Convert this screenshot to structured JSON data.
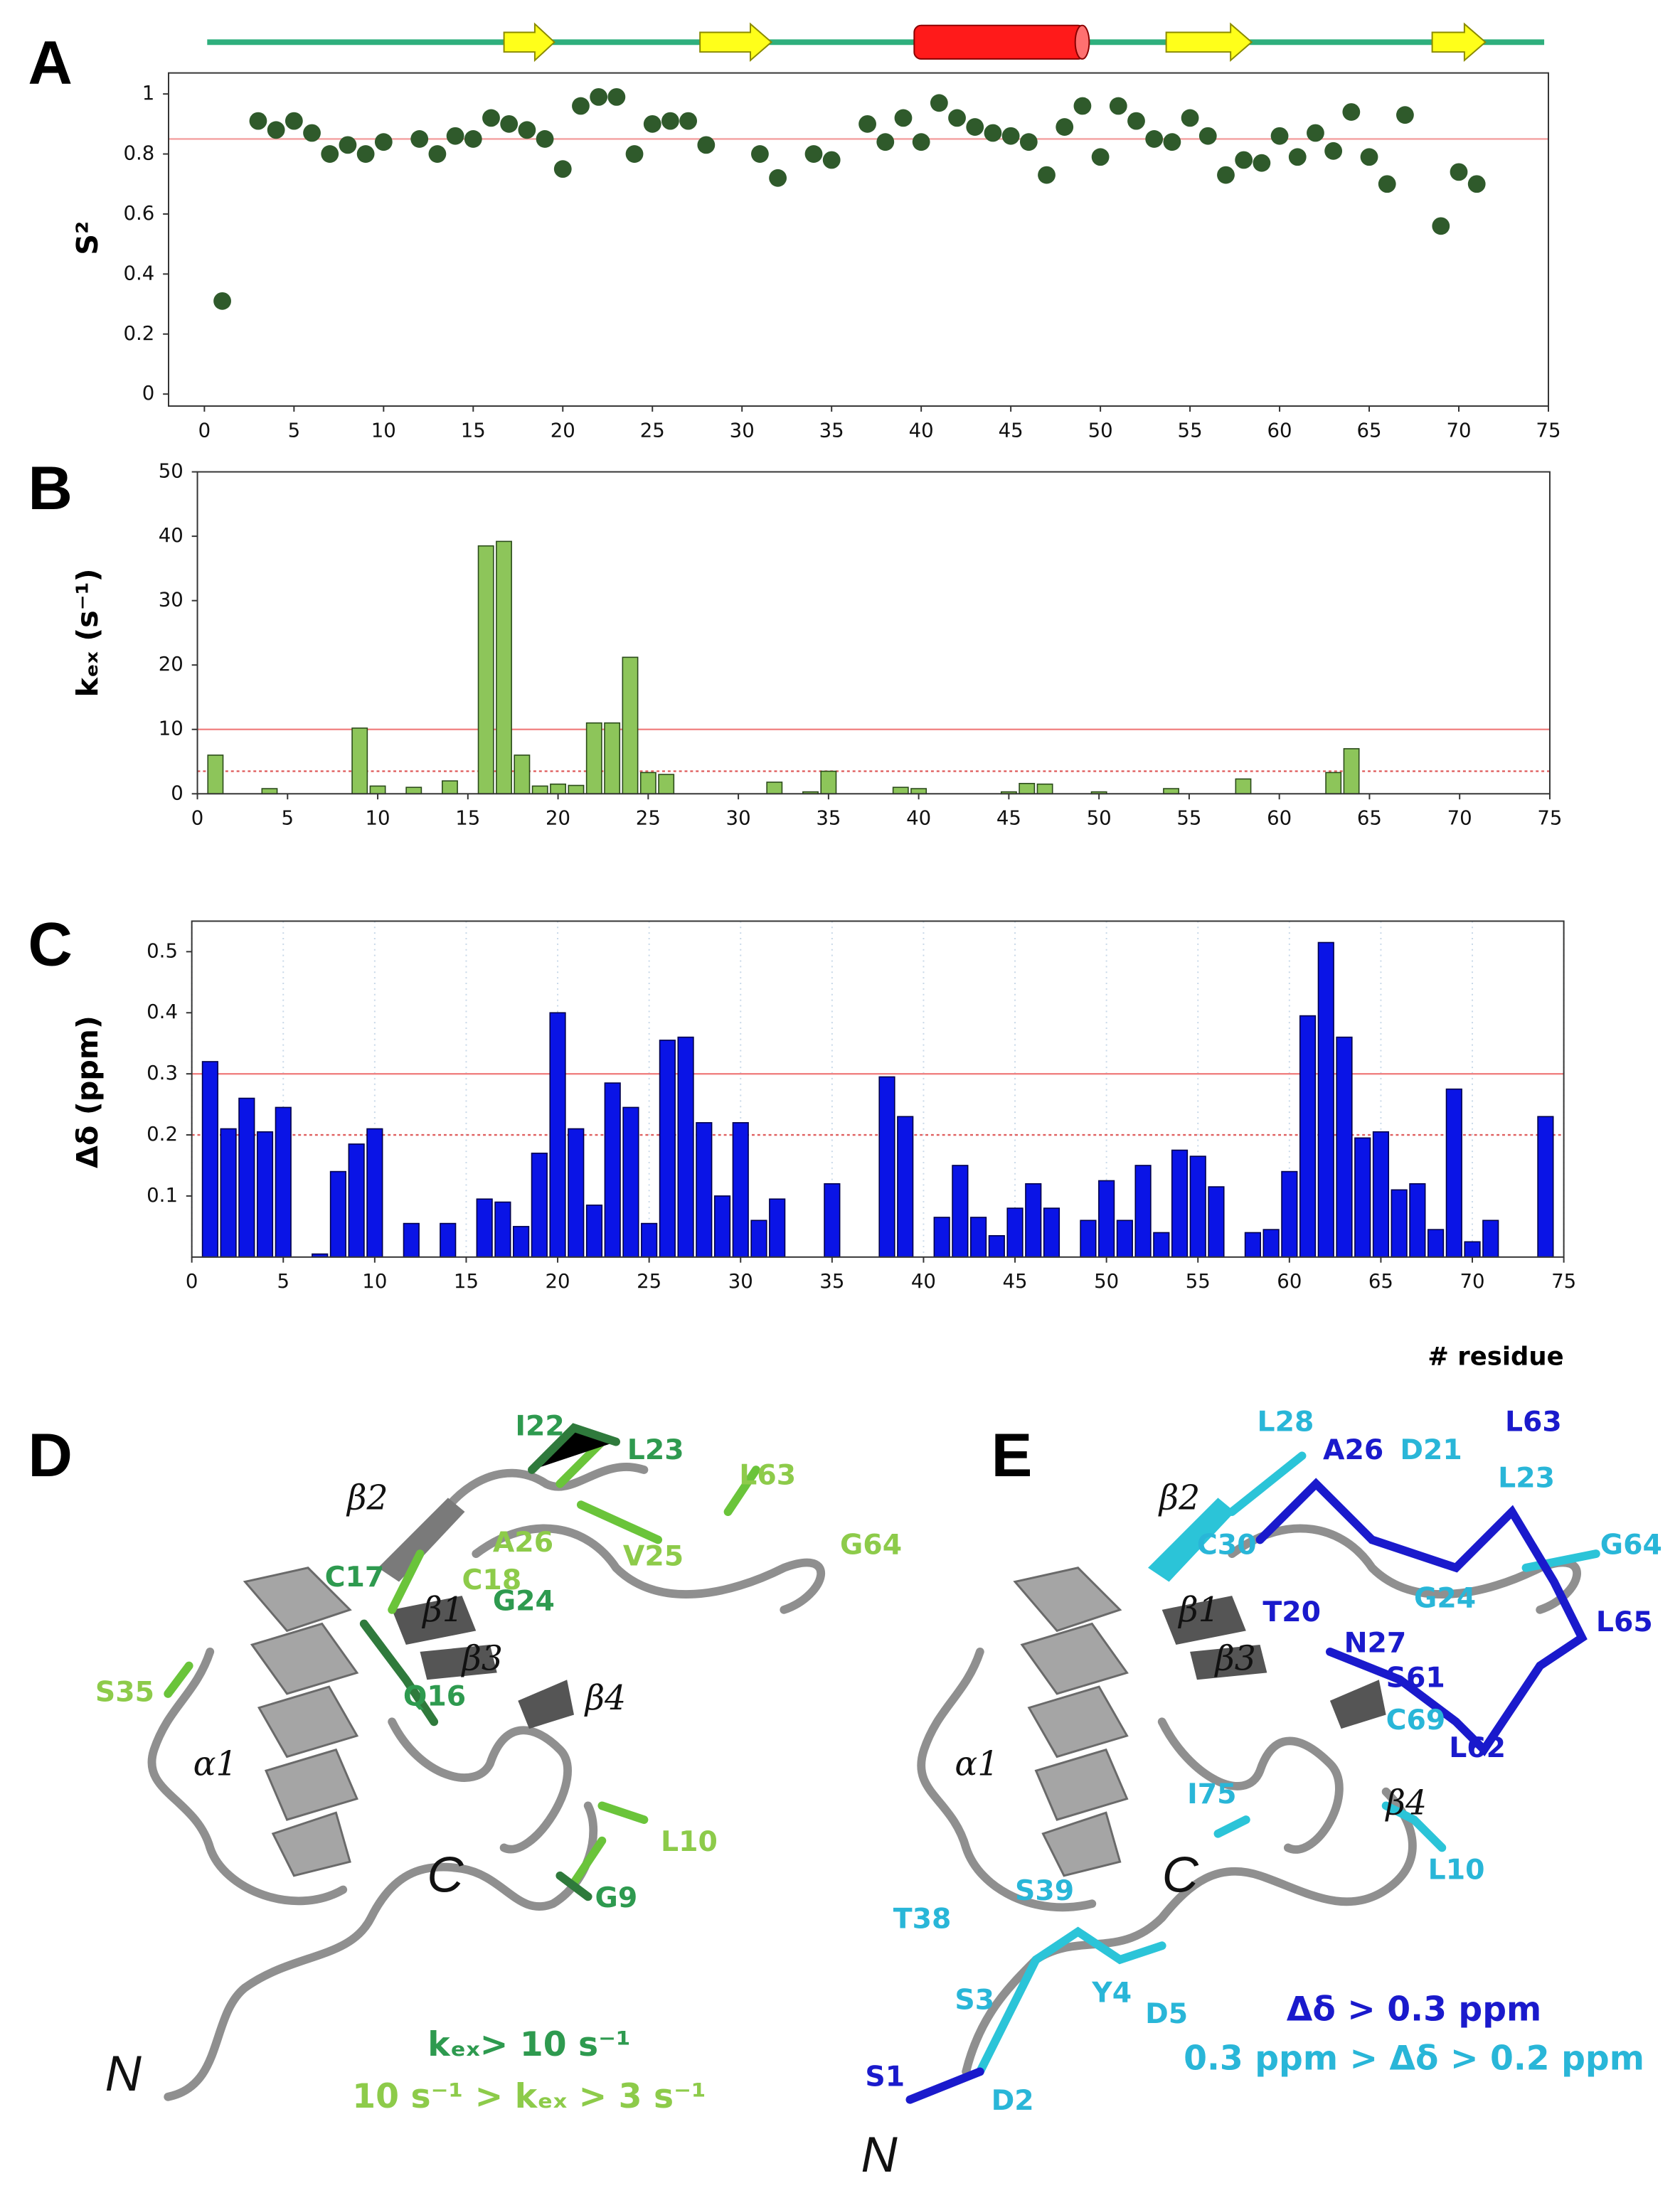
{
  "chart_data": [
    {
      "type": "scatter",
      "panel": "A",
      "y_label": "S²",
      "color": "#2f5a2b",
      "x": [
        1,
        3,
        4,
        5,
        6,
        7,
        8,
        9,
        10,
        12,
        13,
        14,
        15,
        16,
        17,
        18,
        19,
        20,
        21,
        22,
        23,
        24,
        25,
        26,
        27,
        28,
        31,
        32,
        34,
        35,
        37,
        38,
        39,
        40,
        41,
        42,
        43,
        44,
        45,
        46,
        47,
        48,
        49,
        50,
        51,
        52,
        53,
        54,
        55,
        56,
        57,
        58,
        59,
        60,
        61,
        62,
        63,
        64,
        65,
        66,
        67,
        69,
        70,
        71
      ],
      "values": [
        0.31,
        0.91,
        0.88,
        0.91,
        0.87,
        0.8,
        0.83,
        0.8,
        0.84,
        0.85,
        0.8,
        0.86,
        0.85,
        0.92,
        0.9,
        0.88,
        0.85,
        0.75,
        0.96,
        0.99,
        0.99,
        0.8,
        0.9,
        0.91,
        0.91,
        0.83,
        0.8,
        0.72,
        0.8,
        0.78,
        0.9,
        0.84,
        0.92,
        0.84,
        0.97,
        0.92,
        0.89,
        0.87,
        0.86,
        0.84,
        0.73,
        0.89,
        0.96,
        0.79,
        0.96,
        0.91,
        0.85,
        0.84,
        0.92,
        0.86,
        0.73,
        0.78,
        0.77,
        0.86,
        0.79,
        0.87,
        0.81,
        0.94,
        0.79,
        0.7,
        0.93,
        0.56,
        0.74,
        0.7
      ],
      "xlim": [
        -2,
        75
      ],
      "xticks": [
        0,
        5,
        10,
        15,
        20,
        25,
        30,
        35,
        40,
        45,
        50,
        55,
        60,
        65,
        70,
        75
      ],
      "ylim": [
        -0.04,
        1.07
      ],
      "yticks": [
        0,
        0.2,
        0.4,
        0.6,
        0.8,
        1
      ],
      "thresholds": [
        {
          "value": 0.85,
          "style": "solid",
          "color": "#f4a0a0"
        }
      ]
    },
    {
      "type": "bar",
      "panel": "B",
      "y_label": "kₑₓ (s⁻¹)",
      "color": "#8dc55a",
      "x": [
        1,
        4,
        9,
        10,
        12,
        14,
        16,
        17,
        18,
        19,
        20,
        21,
        22,
        23,
        24,
        25,
        26,
        32,
        34,
        35,
        39,
        40,
        45,
        46,
        47,
        50,
        54,
        58,
        63,
        64
      ],
      "values": [
        6,
        0.8,
        10.2,
        1.2,
        1,
        2,
        38.5,
        39.2,
        6,
        1.2,
        1.5,
        1.3,
        11,
        11,
        21.2,
        3.3,
        3,
        1.8,
        0.3,
        3.5,
        1,
        0.8,
        0.3,
        1.6,
        1.5,
        0.3,
        0.8,
        2.3,
        3.3,
        7
      ],
      "xlim": [
        0,
        75
      ],
      "xticks": [
        0,
        5,
        10,
        15,
        20,
        25,
        30,
        35,
        40,
        45,
        50,
        55,
        60,
        65,
        70,
        75
      ],
      "ylim": [
        0,
        50
      ],
      "yticks": [
        0,
        10,
        20,
        30,
        40,
        50
      ],
      "thresholds": [
        {
          "value": 10,
          "style": "solid",
          "color": "#f08080"
        },
        {
          "value": 3.5,
          "style": "dotted",
          "color": "#e06060"
        }
      ]
    },
    {
      "type": "bar",
      "panel": "C",
      "y_label": "Δδ (ppm)",
      "x_label": "# residue",
      "color": "#0a14e6",
      "grid": "x",
      "x": [
        1,
        2,
        3,
        4,
        5,
        7,
        8,
        9,
        10,
        12,
        14,
        16,
        17,
        18,
        19,
        20,
        21,
        22,
        23,
        24,
        25,
        26,
        27,
        28,
        29,
        30,
        31,
        32,
        35,
        38,
        39,
        41,
        42,
        43,
        44,
        45,
        46,
        47,
        49,
        50,
        51,
        52,
        53,
        54,
        55,
        56,
        58,
        59,
        60,
        61,
        62,
        63,
        64,
        65,
        66,
        67,
        68,
        69,
        70,
        71,
        74
      ],
      "values": [
        0.32,
        0.21,
        0.26,
        0.205,
        0.245,
        0.005,
        0.14,
        0.185,
        0.21,
        0.055,
        0.055,
        0.095,
        0.09,
        0.05,
        0.17,
        0.4,
        0.21,
        0.085,
        0.285,
        0.245,
        0.055,
        0.355,
        0.36,
        0.22,
        0.1,
        0.22,
        0.06,
        0.095,
        0.12,
        0.295,
        0.23,
        0.065,
        0.15,
        0.065,
        0.035,
        0.08,
        0.12,
        0.08,
        0.06,
        0.125,
        0.06,
        0.15,
        0.04,
        0.175,
        0.165,
        0.115,
        0.04,
        0.045,
        0.14,
        0.395,
        0.515,
        0.36,
        0.195,
        0.205,
        0.11,
        0.12,
        0.045,
        0.275,
        0.025,
        0.06,
        0.23
      ],
      "xlim": [
        0,
        75
      ],
      "xticks": [
        0,
        5,
        10,
        15,
        20,
        25,
        30,
        35,
        40,
        45,
        50,
        55,
        60,
        65,
        70,
        75
      ],
      "ylim": [
        0,
        0.55
      ],
      "yticks": [
        0.1,
        0.2,
        0.3,
        0.4,
        0.5
      ],
      "thresholds": [
        {
          "value": 0.3,
          "style": "solid",
          "color": "#f08080"
        },
        {
          "value": 0.2,
          "style": "dotted",
          "color": "#e06060"
        }
      ]
    }
  ],
  "structures": [
    {
      "panel": "D",
      "labels": [
        "I22",
        "L23",
        "L63",
        "G64",
        "A26",
        "C18",
        "C17",
        "G24",
        "V25",
        "β2",
        "β1",
        "β3",
        "β4",
        "Q16",
        "S35",
        "α1",
        "C",
        "L10",
        "G9",
        "N"
      ],
      "legend": [
        "kₑₓ> 10 s⁻¹",
        "10 s⁻¹ > kₑₓ > 3 s⁻¹"
      ]
    },
    {
      "panel": "E",
      "labels": [
        "L28",
        "A26",
        "D21",
        "L63",
        "L23",
        "β2",
        "C30",
        "G64",
        "T20",
        "N27",
        "G24",
        "β1",
        "S61",
        "L65",
        "β3",
        "C69",
        "L62",
        "α1",
        "β4",
        "I75",
        "C",
        "L10",
        "T38",
        "S39",
        "S3",
        "Y4",
        "D5",
        "S1",
        "D2",
        "N"
      ],
      "legend": [
        "Δδ > 0.3 ppm",
        "0.3 ppm > Δδ > 0.2 ppm"
      ]
    }
  ]
}
